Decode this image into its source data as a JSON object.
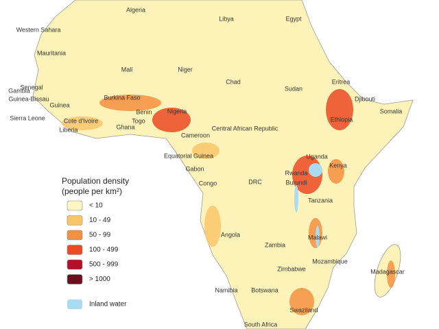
{
  "countries": [
    "Algeria",
    "Libya",
    "Egypt",
    "Western Sahara",
    "Mauritania",
    "Mali",
    "Niger",
    "Chad",
    "Sudan",
    "Eritrea",
    "Djibouti",
    "Somalia",
    "Senegal",
    "Gambia",
    "Guinea-Bissau",
    "Guinea",
    "Burkina Faso",
    "Benin",
    "Nigeria",
    "Togo",
    "Sierra Leone",
    "Cote d'Ivoire",
    "Ghana",
    "Liberia",
    "Central African Republic",
    "Ethiopia",
    "Cameroon",
    "Equatorial Guinea",
    "Gabon",
    "Uganda",
    "Kenya",
    "Rwanda",
    "Burundi",
    "Congo",
    "DRC",
    "Tanzania",
    "Angola",
    "Malawi",
    "Zambia",
    "Mozambique",
    "Zimbabwe",
    "Madagascar",
    "Namibia",
    "Botswana",
    "Swaziland",
    "South Africa"
  ],
  "legend": {
    "title": [
      "Population density",
      "(people per km²)"
    ],
    "items": [
      {
        "label": "< 10",
        "color": "#fdf5c3"
      },
      {
        "label": "10 - 49",
        "color": "#f9c66a"
      },
      {
        "label": "50 - 99",
        "color": "#f59142"
      },
      {
        "label": "100 - 499",
        "color": "#ec4a24"
      },
      {
        "label": "500 - 999",
        "color": "#b5102a"
      },
      {
        "label": "> 1000",
        "color": "#6d0d1e"
      }
    ],
    "water": {
      "label": "Inland water",
      "color": "#a9dcf2"
    }
  }
}
